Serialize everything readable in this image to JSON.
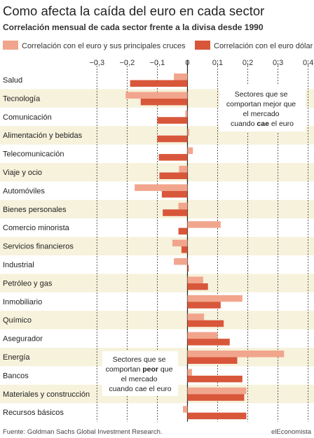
{
  "chart_data": {
    "type": "bar",
    "orientation": "horizontal",
    "title": "Como afecta la caída del euro en cada sector",
    "subtitle": "Correlación mensual de cada sector frente a la divisa desde 1990",
    "x_ticks": [
      "−0,3",
      "−0,2",
      "−0,1",
      "0",
      "0,1",
      "0,2",
      "0,3",
      "0,4"
    ],
    "x_tick_values": [
      -0.3,
      -0.2,
      -0.1,
      0,
      0.1,
      0.2,
      0.3,
      0.4
    ],
    "xlim": [
      -0.31,
      0.41
    ],
    "categories": [
      "Salud",
      "Tecnología",
      "Comunicación",
      "Alimentación y bebidas",
      "Telecomunicación",
      "Viaje y ocio",
      "Automóviles",
      "Bienes personales",
      "Comercio minorista",
      "Servicios financieros",
      "Industrial",
      "Petróleo y gas",
      "Inmobiliario",
      "Químico",
      "Asegurador",
      "Energía",
      "Bancos",
      "Materiales y construcción",
      "Recursos básicos"
    ],
    "series": [
      {
        "name": "Correlación con el euro y sus principales cruces",
        "color": "#f2a58d",
        "values": [
          -0.045,
          -0.205,
          -0.007,
          0.006,
          0.018,
          -0.028,
          -0.175,
          -0.03,
          0.11,
          -0.05,
          -0.045,
          0.052,
          0.182,
          0.055,
          0.1,
          0.32,
          0.015,
          0.195,
          -0.015
        ]
      },
      {
        "name": "Correlación con el euro dólar",
        "color": "#d8573a",
        "values": [
          -0.19,
          -0.155,
          -0.1,
          -0.1,
          -0.095,
          -0.093,
          -0.085,
          -0.082,
          -0.03,
          -0.02,
          0.004,
          0.068,
          0.11,
          0.12,
          0.14,
          0.165,
          0.182,
          0.188,
          0.195
        ]
      }
    ],
    "annotations": [
      {
        "lines": [
          "Sectores que se",
          "comportan mejor que",
          "el mercado"
        ],
        "last_prefix": "cuando ",
        "last_bold": "cae",
        "last_suffix": " el euro"
      },
      {
        "lines": [
          "Sectores que se"
        ],
        "mid_prefix": "comportan ",
        "mid_bold": "peor",
        "mid_suffix": " que",
        "tail_lines": [
          "el mercado",
          "cuando cae el euro"
        ]
      }
    ],
    "grid": true,
    "legend_position": "top"
  },
  "footer": {
    "source": "Fuente: Goldman Sachs Global Investment Research.",
    "brand": "elEconomista"
  }
}
